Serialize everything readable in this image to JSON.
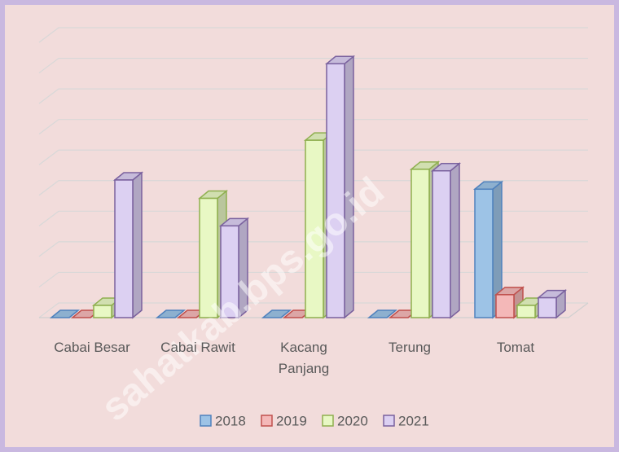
{
  "chart_data": {
    "type": "bar3d",
    "categories": [
      "Cabai Besar",
      "Cabai Rawit",
      "Kacang Panjang",
      "Terung",
      "Tomat"
    ],
    "series": [
      {
        "name": "2018",
        "color": "#9dc3e6",
        "edge": "#4f81bd",
        "values": [
          0,
          0,
          0,
          0,
          4.2
        ]
      },
      {
        "name": "2019",
        "color": "#f4b8b8",
        "edge": "#c0504d",
        "values": [
          0,
          0,
          0,
          0,
          0.75
        ]
      },
      {
        "name": "2020",
        "color": "#e8f8c4",
        "edge": "#8faf4f",
        "values": [
          0.4,
          3.9,
          5.8,
          4.85,
          0.4
        ]
      },
      {
        "name": "2021",
        "color": "#dcd0f2",
        "edge": "#7a619e",
        "values": [
          4.5,
          3.0,
          8.3,
          4.8,
          0.65
        ]
      }
    ],
    "ylim": [
      0,
      9
    ],
    "yticks": [
      0,
      1,
      2,
      3,
      4,
      5,
      6,
      7,
      8,
      9
    ],
    "grid": true,
    "watermark": "sahatkab.bps.go.id"
  }
}
